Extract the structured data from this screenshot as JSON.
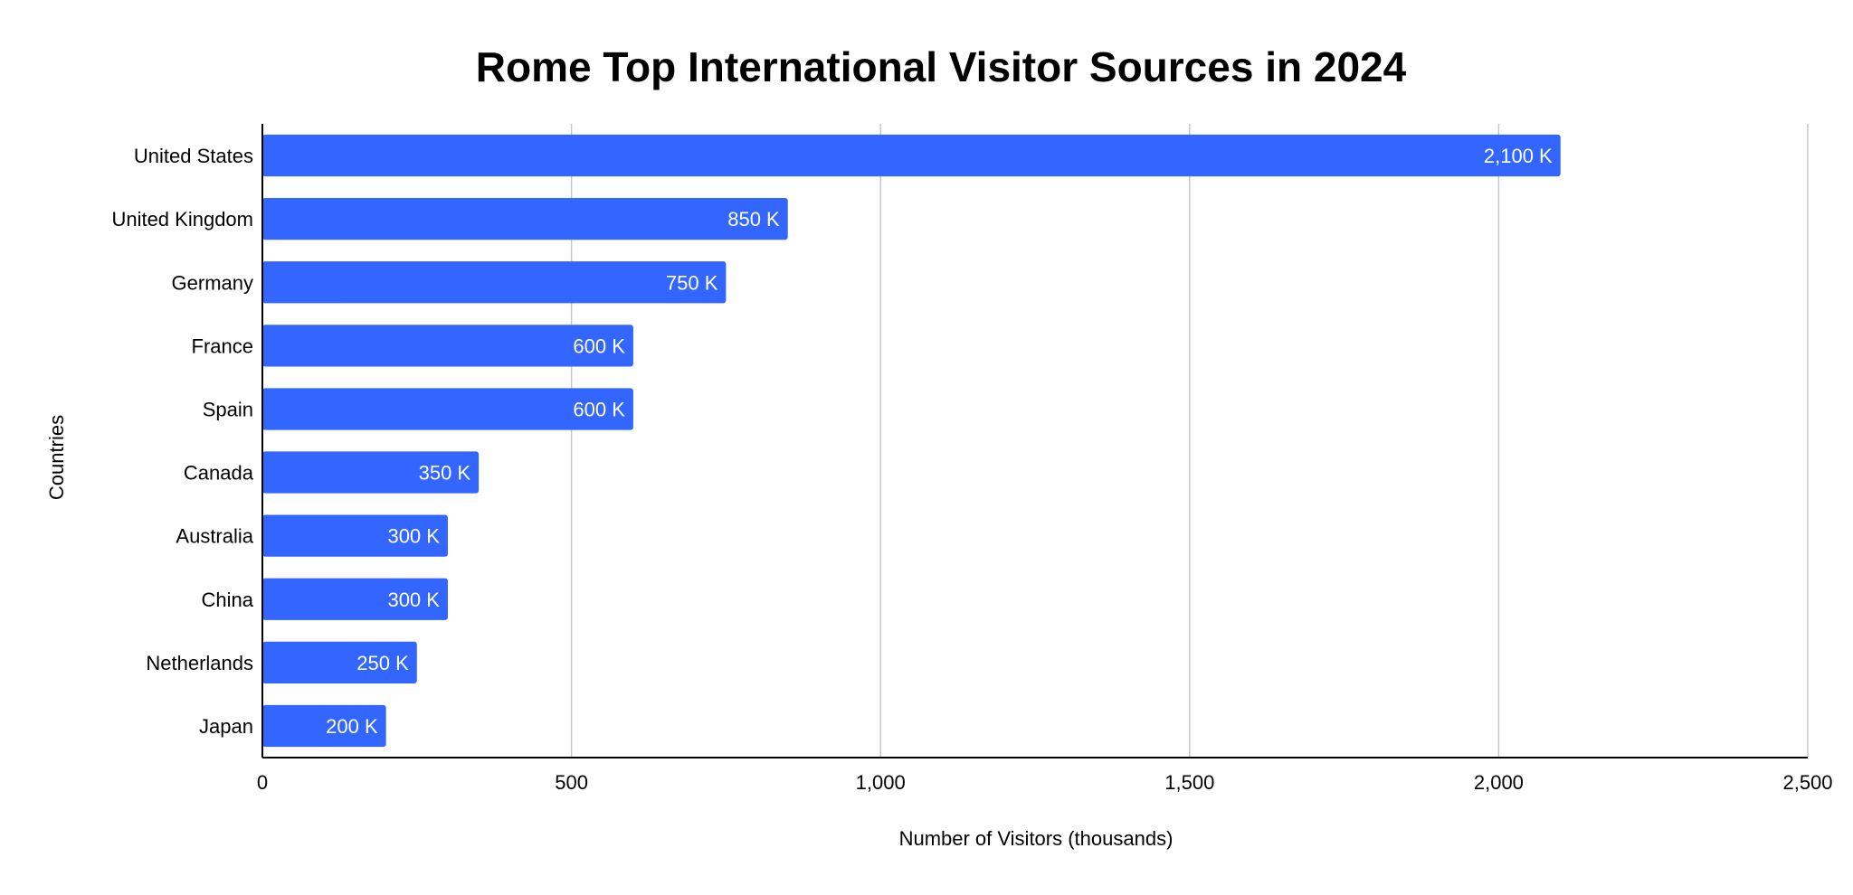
{
  "chart_data": {
    "type": "bar",
    "orientation": "horizontal",
    "title": "Rome Top International Visitor Sources in 2024",
    "xlabel": "Number of Visitors (thousands)",
    "ylabel": "Countries",
    "categories": [
      "United States",
      "United Kingdom",
      "Germany",
      "France",
      "Spain",
      "Canada",
      "Australia",
      "China",
      "Netherlands",
      "Japan"
    ],
    "values": [
      2100,
      850,
      750,
      600,
      600,
      350,
      300,
      300,
      250,
      200
    ],
    "data_labels": [
      "2,100 K",
      "850 K",
      "750 K",
      "600 K",
      "600 K",
      "350 K",
      "300 K",
      "300 K",
      "250 K",
      "200 K"
    ],
    "xlim": [
      0,
      2500
    ],
    "x_ticks": [
      0,
      500,
      1000,
      1500,
      2000,
      2500
    ],
    "x_tick_labels": [
      "0",
      "500",
      "1,000",
      "1,500",
      "2,000",
      "2,500"
    ],
    "grid": true,
    "bar_color": "#3366ff",
    "legend": "none"
  }
}
